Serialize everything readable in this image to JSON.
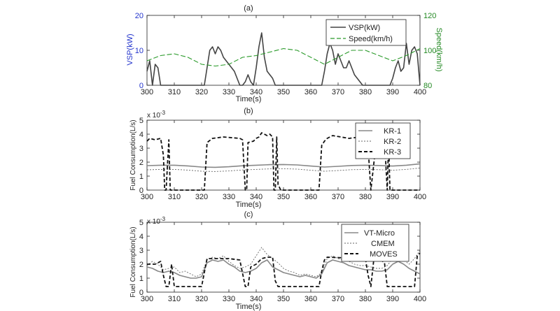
{
  "figure": {
    "panels": [
      {
        "label": "(a)",
        "xlabel": "Time(s)",
        "ylabel": "VSP(kW)",
        "y2label": "Speed(km/h)",
        "exponent": "",
        "legend": [
          "VSP(kW)",
          "Speed(km/h)"
        ]
      },
      {
        "label": "(b)",
        "xlabel": "Time(s)",
        "ylabel": "Fuel Consumption(L/s)",
        "exponent": "x 10",
        "exponent_power": "-3",
        "legend": [
          "KR-1",
          "KR-2",
          "KR-3"
        ]
      },
      {
        "label": "(c)",
        "xlabel": "Time(s)",
        "ylabel": "Fuel Consumption(L/s)",
        "exponent": "x 10",
        "exponent_power": "-3",
        "legend": [
          "VT-Micro",
          "CMEM",
          "MOVES"
        ]
      }
    ]
  },
  "colors": {
    "vsp_axis": "#2233cc",
    "speed_axis": "#228822",
    "vsp_line": "#444444",
    "speed_line": "#2a9a2a",
    "kr1": "#888888",
    "kr2": "#666666",
    "kr3": "#111111",
    "vt": "#888888",
    "cmem": "#666666",
    "moves": "#111111"
  },
  "chart_data": [
    {
      "type": "line",
      "panel": "(a)",
      "xlim": [
        300,
        400
      ],
      "xticks": [
        300,
        310,
        320,
        330,
        340,
        350,
        360,
        370,
        380,
        390,
        400
      ],
      "ylim": [
        0,
        20
      ],
      "yticks": [
        0,
        10,
        20
      ],
      "y2lim": [
        80,
        120
      ],
      "y2ticks": [
        80,
        100,
        120
      ],
      "grid": false,
      "legend_position": "top-right",
      "series": [
        {
          "name": "VSP(kW)",
          "axis": "left",
          "style": "solid",
          "x": [
            300,
            301,
            302,
            303,
            304,
            305,
            306,
            310,
            315,
            320,
            321,
            322,
            323,
            324,
            325,
            326,
            327,
            328,
            329,
            330,
            331,
            332,
            333,
            334,
            335,
            336,
            337,
            338,
            339,
            340,
            341,
            342,
            343,
            344,
            345,
            346,
            347,
            350,
            355,
            360,
            362,
            364,
            365,
            366,
            367,
            368,
            369,
            370,
            371,
            372,
            373,
            374,
            375,
            376,
            377,
            378,
            379,
            380,
            382,
            385,
            388,
            389,
            390,
            391,
            392,
            393,
            394,
            395,
            396,
            397,
            398,
            399,
            400
          ],
          "y": [
            4,
            7,
            0,
            6,
            5,
            0,
            0,
            0,
            0,
            0,
            0,
            5,
            10,
            11,
            9,
            11,
            10,
            8,
            7,
            6,
            5,
            4,
            2,
            0,
            0,
            1,
            3,
            1,
            0,
            5,
            11,
            15,
            8,
            4,
            3,
            2,
            0,
            0,
            0,
            0,
            0,
            0,
            4,
            9,
            12,
            10,
            6,
            9,
            7,
            5,
            5,
            7,
            5,
            3,
            2,
            1,
            0,
            0,
            0,
            0,
            0,
            0,
            2,
            5,
            7,
            4,
            5,
            12,
            6,
            10,
            11,
            9,
            0
          ]
        },
        {
          "name": "Speed(km/h)",
          "axis": "right",
          "style": "dashed",
          "x": [
            300,
            305,
            310,
            315,
            320,
            325,
            330,
            335,
            340,
            345,
            350,
            355,
            360,
            365,
            370,
            375,
            380,
            385,
            390,
            395,
            400
          ],
          "y": [
            94,
            97,
            98,
            96,
            92,
            91,
            92,
            96,
            97,
            99,
            101,
            100,
            96,
            92,
            96,
            100,
            100,
            97,
            94,
            97,
            101
          ]
        }
      ]
    },
    {
      "type": "line",
      "panel": "(b)",
      "xlim": [
        300,
        400
      ],
      "xticks": [
        300,
        310,
        320,
        330,
        340,
        350,
        360,
        370,
        380,
        390,
        400
      ],
      "ylim": [
        0,
        5
      ],
      "yticks": [
        0,
        1,
        2,
        3,
        4,
        5
      ],
      "y_multiplier": "1e-3",
      "grid": false,
      "legend_position": "top-right",
      "series": [
        {
          "name": "KR-1",
          "style": "solid",
          "x": [
            300,
            305,
            310,
            315,
            320,
            325,
            330,
            335,
            340,
            345,
            350,
            355,
            360,
            365,
            370,
            375,
            380,
            385,
            390,
            395,
            400
          ],
          "y": [
            1.75,
            1.78,
            1.78,
            1.73,
            1.65,
            1.63,
            1.67,
            1.74,
            1.78,
            1.82,
            1.83,
            1.8,
            1.72,
            1.65,
            1.7,
            1.76,
            1.78,
            1.76,
            1.72,
            1.78,
            1.88
          ]
        },
        {
          "name": "KR-2",
          "style": "dotted",
          "x": [
            300,
            305,
            310,
            315,
            320,
            325,
            330,
            335,
            340,
            345,
            350,
            355,
            360,
            365,
            370,
            375,
            380,
            385,
            390,
            395,
            400
          ],
          "y": [
            1.45,
            1.48,
            1.48,
            1.43,
            1.35,
            1.33,
            1.37,
            1.44,
            1.48,
            1.52,
            1.53,
            1.5,
            1.42,
            1.35,
            1.4,
            1.46,
            1.48,
            1.46,
            1.42,
            1.48,
            1.58
          ]
        },
        {
          "name": "KR-3",
          "style": "dashed",
          "x": [
            300,
            301,
            303,
            305,
            306,
            306.5,
            307,
            308,
            308.5,
            309,
            320,
            321,
            322,
            324,
            328,
            334,
            335,
            336,
            336.5,
            337,
            339,
            340,
            341,
            342,
            344,
            345,
            346,
            346.5,
            347,
            347.5,
            348,
            349,
            350,
            351,
            362,
            363,
            364,
            365,
            366,
            368,
            374,
            378,
            380,
            381,
            382,
            384,
            386,
            387,
            388,
            388.5,
            389,
            390,
            400
          ],
          "y": [
            3.5,
            3.7,
            3.6,
            3.7,
            2.5,
            0,
            0,
            3.6,
            0,
            0,
            0,
            0,
            3.4,
            3.7,
            3.8,
            3.7,
            3.6,
            0,
            0,
            3.4,
            3.5,
            3.7,
            3.8,
            4.1,
            3.9,
            4.0,
            3.8,
            0,
            0,
            3.8,
            0.4,
            0,
            0,
            0,
            0,
            0,
            3.2,
            3.5,
            3.7,
            3.9,
            3.7,
            3.8,
            3.7,
            3.0,
            0,
            3.5,
            3.8,
            3.6,
            0,
            3.5,
            0,
            0,
            0
          ]
        }
      ]
    },
    {
      "type": "line",
      "panel": "(c)",
      "xlim": [
        300,
        400
      ],
      "xticks": [
        300,
        310,
        320,
        330,
        340,
        350,
        360,
        370,
        380,
        390,
        400
      ],
      "ylim": [
        0,
        5
      ],
      "yticks": [
        0,
        1,
        2,
        3,
        4,
        5
      ],
      "y_multiplier": "1e-3",
      "grid": false,
      "legend_position": "top-right",
      "series": [
        {
          "name": "VT-Micro",
          "style": "solid",
          "x": [
            300,
            302,
            304,
            306,
            308,
            310,
            312,
            314,
            316,
            318,
            320,
            322,
            324,
            326,
            328,
            330,
            332,
            334,
            336,
            338,
            340,
            342,
            344,
            346,
            348,
            350,
            352,
            354,
            356,
            358,
            360,
            362,
            364,
            366,
            368,
            370,
            372,
            374,
            376,
            378,
            380,
            382,
            384,
            386,
            388,
            390,
            392,
            394,
            396,
            398,
            400
          ],
          "y": [
            1.8,
            1.7,
            1.5,
            1.4,
            1.5,
            1.4,
            1.2,
            1.1,
            1.0,
            1.0,
            1.1,
            2.1,
            2.3,
            2.2,
            2.3,
            2.0,
            1.8,
            1.5,
            1.4,
            1.5,
            1.7,
            2.1,
            2.3,
            1.8,
            1.6,
            1.4,
            1.3,
            1.2,
            1.1,
            1.2,
            1.1,
            1.0,
            1.3,
            2.1,
            2.3,
            2.2,
            2.1,
            1.9,
            1.8,
            1.7,
            1.6,
            1.6,
            1.5,
            1.5,
            1.6,
            2.0,
            2.2,
            2.0,
            1.7,
            1.5,
            1.3
          ]
        },
        {
          "name": "CMEM",
          "style": "dotted",
          "x": [
            300,
            302,
            304,
            306,
            308,
            310,
            312,
            314,
            316,
            318,
            320,
            322,
            324,
            326,
            328,
            330,
            332,
            334,
            336,
            338,
            340,
            342,
            344,
            346,
            348,
            350,
            352,
            354,
            356,
            358,
            360,
            362,
            364,
            366,
            368,
            370,
            372,
            374,
            376,
            378,
            380,
            382,
            384,
            386,
            388,
            390,
            392,
            394,
            396,
            398,
            400
          ],
          "y": [
            1.9,
            2.2,
            2.0,
            1.6,
            1.7,
            1.8,
            1.4,
            1.5,
            1.3,
            1.1,
            1.3,
            2.3,
            2.5,
            2.4,
            2.6,
            2.2,
            1.9,
            1.7,
            1.8,
            2.0,
            2.6,
            3.2,
            2.7,
            2.4,
            2.1,
            1.7,
            1.5,
            1.4,
            1.2,
            1.3,
            1.2,
            1.1,
            1.4,
            2.4,
            2.6,
            2.4,
            2.3,
            2.2,
            2.0,
            1.9,
            1.9,
            1.8,
            1.7,
            1.7,
            1.9,
            2.4,
            2.5,
            2.3,
            2.0,
            2.4,
            3.0
          ]
        },
        {
          "name": "MOVES",
          "style": "dashed",
          "x": [
            300,
            303,
            305,
            306,
            307,
            308,
            309,
            310,
            311,
            319,
            320,
            321,
            322,
            330,
            334,
            336,
            337,
            338,
            340,
            342,
            344,
            346,
            347,
            348,
            349,
            350,
            362,
            363,
            364,
            365,
            366,
            380,
            381,
            382,
            383,
            385,
            387,
            388,
            389,
            390,
            398,
            399,
            400
          ],
          "y": [
            2.0,
            2.0,
            2.2,
            1.2,
            0.4,
            0.4,
            2.0,
            0.4,
            0.4,
            0.4,
            0.4,
            1.4,
            2.4,
            2.4,
            2.3,
            0.4,
            0.4,
            1.8,
            2.0,
            2.4,
            2.5,
            2.5,
            0.8,
            0.4,
            0.4,
            0.4,
            0.4,
            0.4,
            1.5,
            2.3,
            2.5,
            2.4,
            1.2,
            0.4,
            2.2,
            2.4,
            2.1,
            0.4,
            0.4,
            0.4,
            0.4,
            2.6,
            2.8
          ]
        }
      ]
    }
  ]
}
